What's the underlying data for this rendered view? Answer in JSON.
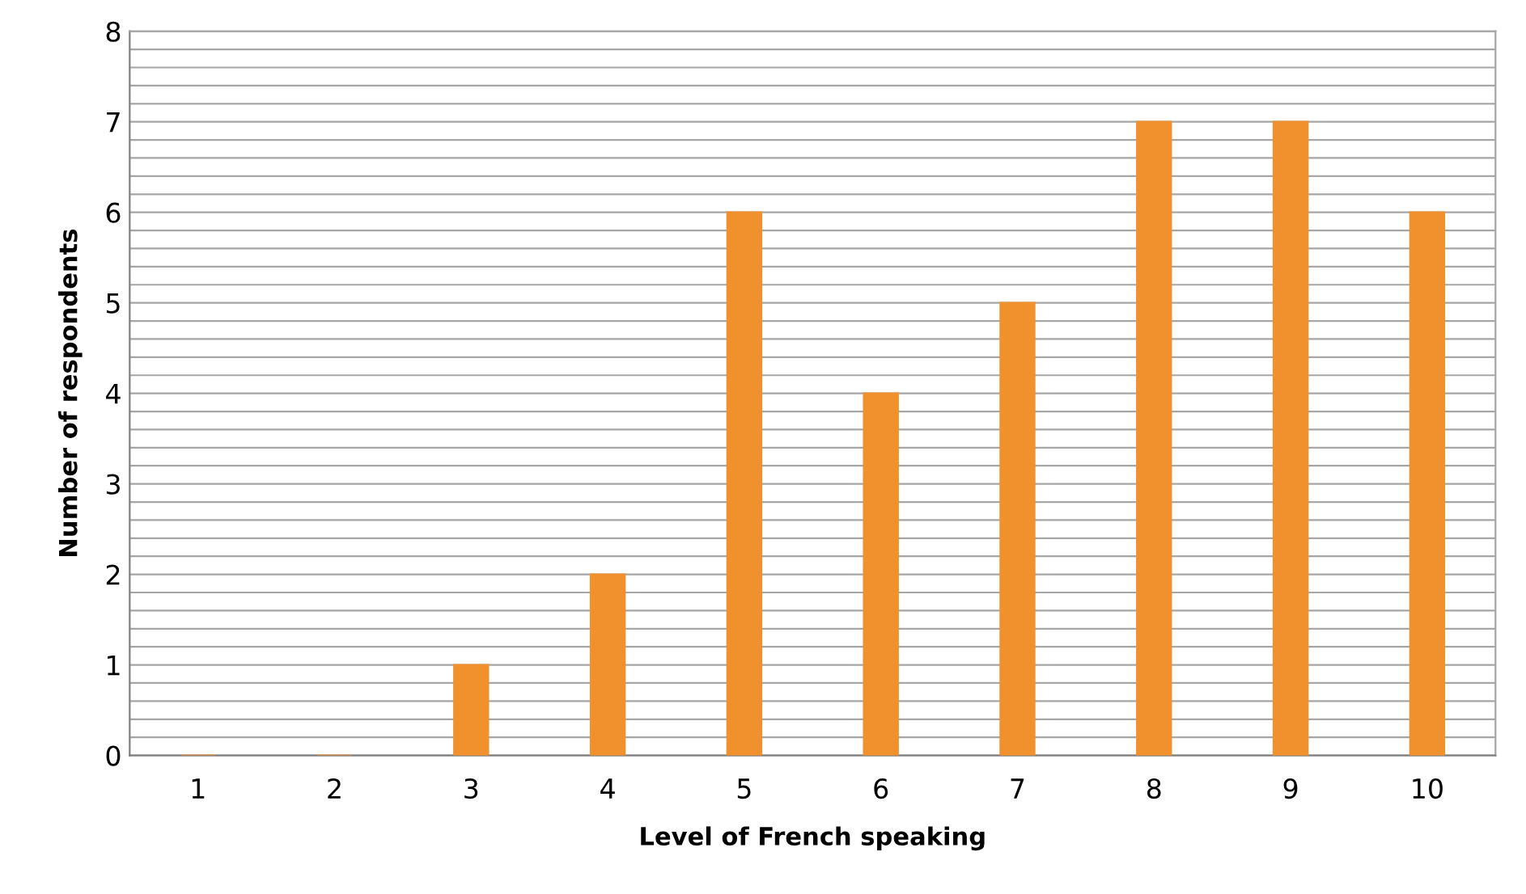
{
  "chart_data": {
    "type": "bar",
    "xlabel": "Level of French speaking",
    "ylabel": "Number of respondents",
    "categories": [
      "1",
      "2",
      "3",
      "4",
      "5",
      "6",
      "7",
      "8",
      "9",
      "10"
    ],
    "values": [
      0,
      0,
      1,
      2,
      6,
      4,
      5,
      7,
      7,
      6
    ],
    "color": "#f0912e",
    "ylim": [
      0,
      8
    ],
    "yticks": [
      0,
      {
        "value": 0.2,
        "label": null
      },
      {
        "value": 0.4,
        "label": null
      },
      {
        "value": 0.6,
        "label": null
      },
      {
        "value": 0.8,
        "label": null
      },
      1,
      {
        "value": 1.2,
        "label": null
      },
      {
        "value": 1.4,
        "label": null
      },
      {
        "value": 1.6,
        "label": null
      },
      {
        "value": 1.8,
        "label": null
      },
      2,
      {
        "value": 2.2,
        "label": null
      },
      {
        "value": 2.4,
        "label": null
      },
      {
        "value": 2.6,
        "label": null
      },
      {
        "value": 2.8,
        "label": null
      },
      3,
      {
        "value": 3.2,
        "label": null
      },
      {
        "value": 3.4,
        "label": null
      },
      {
        "value": 3.6,
        "label": null
      },
      {
        "value": 3.8,
        "label": null
      },
      4,
      {
        "value": 4.2,
        "label": null
      },
      {
        "value": 4.4,
        "label": null
      },
      {
        "value": 4.6,
        "label": null
      },
      {
        "value": 4.8,
        "label": null
      },
      5,
      {
        "value": 5.2,
        "label": null
      },
      {
        "value": 5.4,
        "label": null
      },
      {
        "value": 5.6,
        "label": null
      },
      {
        "value": 5.8,
        "label": null
      },
      6,
      {
        "value": 6.2,
        "label": null
      },
      {
        "value": 6.4,
        "label": null
      },
      {
        "value": 6.6,
        "label": null
      },
      {
        "value": 6.8,
        "label": null
      },
      7,
      {
        "value": 7.2,
        "label": null
      },
      {
        "value": 7.4,
        "label": null
      },
      {
        "value": 7.6,
        "label": null
      },
      {
        "value": 7.8,
        "label": null
      },
      8
    ],
    "grid": "y"
  }
}
